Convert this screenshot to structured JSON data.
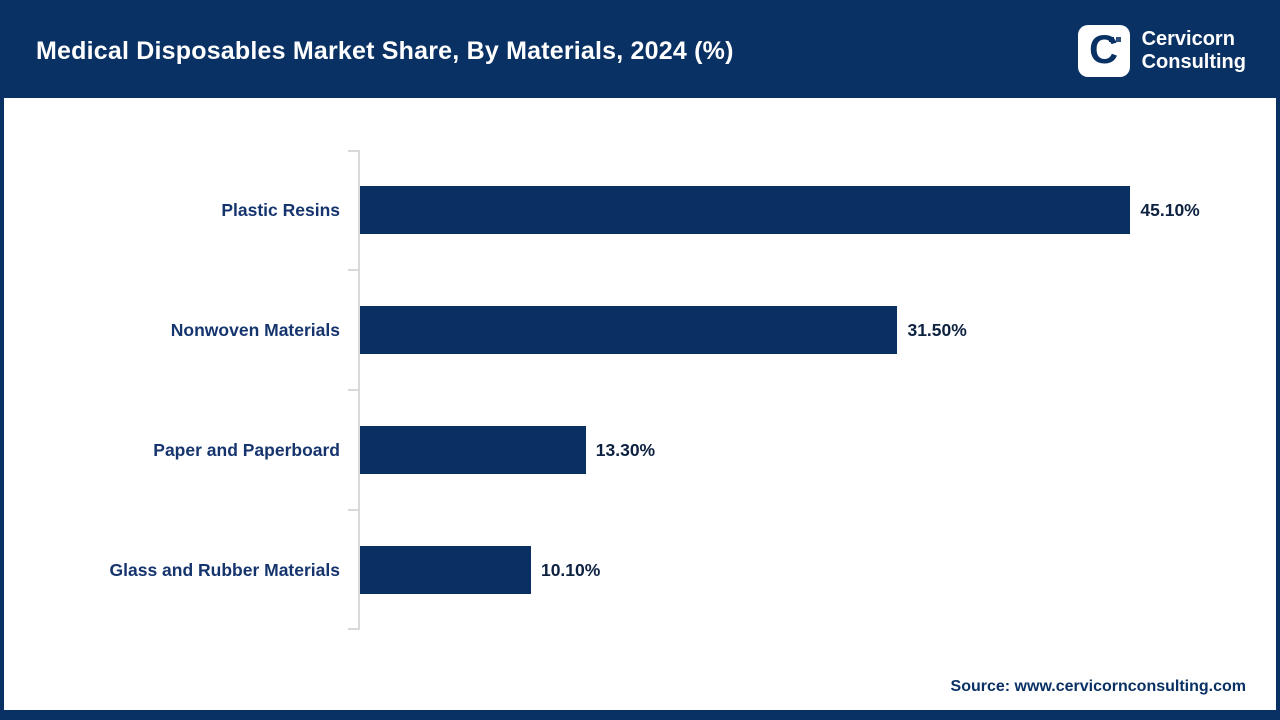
{
  "header": {
    "title": "Medical Disposables Market Share, By Materials, 2024 (%)"
  },
  "logo": {
    "letter": "C",
    "line1": "Cervicorn",
    "line2": "Consulting"
  },
  "chart_data": {
    "type": "bar",
    "orientation": "horizontal",
    "title": "Medical Disposables Market Share, By Materials, 2024 (%)",
    "categories": [
      "Plastic Resins",
      "Nonwoven Materials",
      "Paper and Paperboard",
      "Glass and Rubber Materials"
    ],
    "values": [
      45.1,
      31.5,
      13.3,
      10.1
    ],
    "value_labels": [
      "45.10%",
      "31.50%",
      "13.30%",
      "10.10%"
    ],
    "xlabel": "",
    "ylabel": "",
    "xlim": [
      0,
      51.5
    ],
    "grid": false,
    "legend": false,
    "bar_color": "#0a2f63",
    "label_color": "#16356e",
    "value_color": "#0d2240"
  },
  "source": {
    "text": "Source: www.cervicornconsulting.com"
  }
}
